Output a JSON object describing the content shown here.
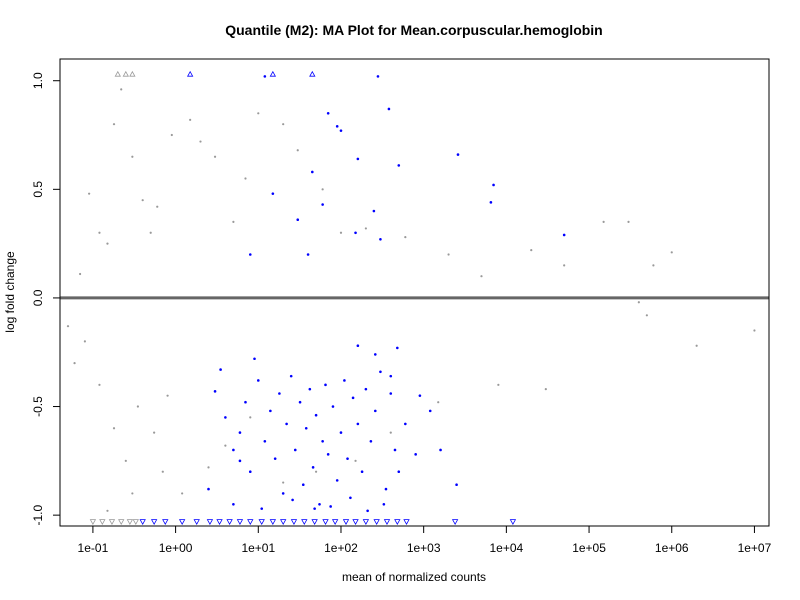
{
  "chart_data": {
    "type": "scatter",
    "title": "Quantile (M2): MA Plot for Mean.corpuscular.hemoglobin",
    "xlabel": "mean of normalized counts",
    "ylabel": "log fold change",
    "x_scale": "log10",
    "xlim": [
      0.04,
      15000000
    ],
    "ylim": [
      -1.05,
      1.1
    ],
    "x_ticks": [
      {
        "value": 0.1,
        "label": "1e-01"
      },
      {
        "value": 1,
        "label": "1e+00"
      },
      {
        "value": 10,
        "label": "1e+01"
      },
      {
        "value": 100,
        "label": "1e+02"
      },
      {
        "value": 1000,
        "label": "1e+03"
      },
      {
        "value": 10000,
        "label": "1e+04"
      },
      {
        "value": 100000,
        "label": "1e+05"
      },
      {
        "value": 1000000,
        "label": "1e+06"
      },
      {
        "value": 10000000,
        "label": "1e+07"
      }
    ],
    "y_ticks": [
      {
        "value": -1.0,
        "label": "-1.0"
      },
      {
        "value": -0.5,
        "label": "-0.5"
      },
      {
        "value": 0.0,
        "label": "0.0"
      },
      {
        "value": 0.5,
        "label": "0.5"
      },
      {
        "value": 1.0,
        "label": "1.0"
      }
    ],
    "reference_line": {
      "y": 0,
      "color": "#666666"
    },
    "grid": false,
    "colors": {
      "non_significant": "#999999",
      "significant": "#0000ff",
      "outlier": "#0000ff"
    },
    "series": [
      {
        "role": "non-significant",
        "color": "#999999",
        "points": [
          [
            0.05,
            -0.13
          ],
          [
            0.06,
            -0.3
          ],
          [
            0.07,
            0.11
          ],
          [
            0.08,
            -0.2
          ],
          [
            0.09,
            0.48
          ],
          [
            0.12,
            0.3
          ],
          [
            0.12,
            -0.4
          ],
          [
            0.15,
            0.25
          ],
          [
            0.18,
            0.8
          ],
          [
            0.18,
            -0.6
          ],
          [
            0.22,
            0.96
          ],
          [
            0.25,
            -0.75
          ],
          [
            0.3,
            0.65
          ],
          [
            0.35,
            -0.5
          ],
          [
            0.4,
            0.45
          ],
          [
            0.5,
            0.3
          ],
          [
            0.6,
            0.42
          ],
          [
            0.7,
            -0.8
          ],
          [
            0.9,
            0.75
          ],
          [
            1.5,
            0.82
          ],
          [
            2,
            0.72
          ],
          [
            3,
            0.65
          ],
          [
            5,
            0.35
          ],
          [
            7,
            0.55
          ],
          [
            10,
            0.85
          ],
          [
            20,
            0.8
          ],
          [
            30,
            0.68
          ],
          [
            60,
            0.5
          ],
          [
            100,
            0.3
          ],
          [
            200,
            0.32
          ],
          [
            600,
            0.28
          ],
          [
            2000,
            0.2
          ],
          [
            5000,
            0.1
          ],
          [
            20000,
            0.22
          ],
          [
            50000,
            0.15
          ],
          [
            150000,
            0.35
          ],
          [
            300000,
            0.35
          ],
          [
            600000,
            0.15
          ],
          [
            1000000,
            0.21
          ],
          [
            2000000,
            -0.22
          ],
          [
            10000000,
            -0.15
          ],
          [
            400000,
            -0.02
          ],
          [
            500000,
            -0.08
          ],
          [
            30000,
            -0.42
          ],
          [
            8000,
            -0.4
          ],
          [
            1500,
            -0.48
          ],
          [
            400,
            -0.62
          ],
          [
            150,
            -0.75
          ],
          [
            50,
            -0.8
          ],
          [
            20,
            -0.85
          ],
          [
            8,
            -0.55
          ],
          [
            4,
            -0.68
          ],
          [
            2.5,
            -0.78
          ],
          [
            1.2,
            -0.9
          ],
          [
            0.8,
            -0.45
          ],
          [
            0.3,
            -0.9
          ],
          [
            0.15,
            -0.98
          ],
          [
            0.55,
            -0.62
          ]
        ]
      },
      {
        "role": "significant",
        "color": "#0000ff",
        "points": [
          [
            12,
            1.02
          ],
          [
            70,
            0.85
          ],
          [
            280,
            1.02
          ],
          [
            380,
            0.87
          ],
          [
            90,
            0.79
          ],
          [
            2600,
            0.66
          ],
          [
            7000,
            0.52
          ],
          [
            50000,
            0.29
          ],
          [
            6500,
            0.44
          ],
          [
            500,
            0.61
          ],
          [
            160,
            0.64
          ],
          [
            250,
            0.4
          ],
          [
            100,
            0.77
          ],
          [
            45,
            0.58
          ],
          [
            15,
            0.48
          ],
          [
            30,
            0.36
          ],
          [
            300,
            0.27
          ],
          [
            60,
            0.43
          ],
          [
            8,
            0.2
          ],
          [
            40,
            0.2
          ],
          [
            150,
            0.3
          ],
          [
            3,
            -0.43
          ],
          [
            4,
            -0.55
          ],
          [
            5,
            -0.7
          ],
          [
            6,
            -0.62
          ],
          [
            7,
            -0.48
          ],
          [
            8,
            -0.8
          ],
          [
            10,
            -0.38
          ],
          [
            12,
            -0.66
          ],
          [
            14,
            -0.52
          ],
          [
            16,
            -0.74
          ],
          [
            18,
            -0.44
          ],
          [
            20,
            -0.9
          ],
          [
            22,
            -0.58
          ],
          [
            25,
            -0.36
          ],
          [
            28,
            -0.7
          ],
          [
            32,
            -0.48
          ],
          [
            35,
            -0.86
          ],
          [
            38,
            -0.6
          ],
          [
            42,
            -0.42
          ],
          [
            46,
            -0.78
          ],
          [
            50,
            -0.54
          ],
          [
            55,
            -0.95
          ],
          [
            60,
            -0.66
          ],
          [
            65,
            -0.4
          ],
          [
            70,
            -0.72
          ],
          [
            80,
            -0.5
          ],
          [
            90,
            -0.84
          ],
          [
            100,
            -0.62
          ],
          [
            110,
            -0.38
          ],
          [
            120,
            -0.74
          ],
          [
            140,
            -0.46
          ],
          [
            160,
            -0.58
          ],
          [
            180,
            -0.8
          ],
          [
            200,
            -0.42
          ],
          [
            230,
            -0.66
          ],
          [
            260,
            -0.52
          ],
          [
            300,
            -0.34
          ],
          [
            350,
            -0.88
          ],
          [
            400,
            -0.44
          ],
          [
            450,
            -0.7
          ],
          [
            500,
            -0.8
          ],
          [
            600,
            -0.58
          ],
          [
            800,
            -0.72
          ],
          [
            900,
            -0.45
          ],
          [
            1200,
            -0.52
          ],
          [
            2500,
            -0.86
          ],
          [
            1600,
            -0.7
          ],
          [
            400,
            -0.36
          ],
          [
            9,
            -0.28
          ],
          [
            3.5,
            -0.33
          ],
          [
            6,
            -0.75
          ],
          [
            2.5,
            -0.88
          ],
          [
            5,
            -0.95
          ],
          [
            11,
            -0.97
          ],
          [
            26,
            -0.93
          ],
          [
            48,
            -0.97
          ],
          [
            75,
            -0.96
          ],
          [
            130,
            -0.92
          ],
          [
            210,
            -0.98
          ],
          [
            330,
            -0.95
          ],
          [
            260,
            -0.26
          ],
          [
            160,
            -0.22
          ],
          [
            480,
            -0.23
          ]
        ]
      },
      {
        "role": "outlier-up",
        "color": "#0000ff",
        "marker": "triangle-up",
        "points": [
          [
            1.5,
            1.03
          ],
          [
            15,
            1.03
          ],
          [
            45,
            1.03
          ]
        ]
      },
      {
        "role": "outlier-up-grey",
        "color": "#999999",
        "marker": "triangle-up",
        "points": [
          [
            0.2,
            1.03
          ],
          [
            0.25,
            1.03
          ],
          [
            0.3,
            1.03
          ]
        ]
      },
      {
        "role": "outlier-down",
        "color": "#0000ff",
        "marker": "triangle-down",
        "points": [
          [
            0.4,
            -1.03
          ],
          [
            0.55,
            -1.03
          ],
          [
            0.75,
            -1.03
          ],
          [
            1.2,
            -1.03
          ],
          [
            1.8,
            -1.03
          ],
          [
            2.6,
            -1.03
          ],
          [
            3.4,
            -1.03
          ],
          [
            4.5,
            -1.03
          ],
          [
            6,
            -1.03
          ],
          [
            8,
            -1.03
          ],
          [
            11,
            -1.03
          ],
          [
            15,
            -1.03
          ],
          [
            20,
            -1.03
          ],
          [
            27,
            -1.03
          ],
          [
            36,
            -1.03
          ],
          [
            48,
            -1.03
          ],
          [
            65,
            -1.03
          ],
          [
            85,
            -1.03
          ],
          [
            115,
            -1.03
          ],
          [
            150,
            -1.03
          ],
          [
            200,
            -1.03
          ],
          [
            270,
            -1.03
          ],
          [
            360,
            -1.03
          ],
          [
            480,
            -1.03
          ],
          [
            620,
            -1.03
          ],
          [
            2400,
            -1.03
          ],
          [
            12000,
            -1.03
          ]
        ]
      },
      {
        "role": "outlier-down-grey",
        "color": "#999999",
        "marker": "triangle-down",
        "points": [
          [
            0.1,
            -1.03
          ],
          [
            0.13,
            -1.03
          ],
          [
            0.17,
            -1.03
          ],
          [
            0.22,
            -1.03
          ],
          [
            0.28,
            -1.03
          ],
          [
            0.33,
            -1.03
          ]
        ]
      }
    ]
  }
}
